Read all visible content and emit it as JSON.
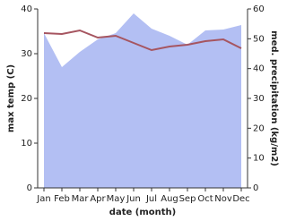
{
  "chart_data": {
    "type": "line",
    "x_label": "date (month)",
    "y_label": "max temp (C)",
    "y2_label": "med. precipitation (kg/m2)",
    "categories": [
      "Jan",
      "Feb",
      "Mar",
      "Apr",
      "May",
      "Jun",
      "Jul",
      "Aug",
      "Sep",
      "Oct",
      "Nov",
      "Dec"
    ],
    "series": [
      {
        "name": "max temp",
        "type": "line",
        "color": "#a65560",
        "values": [
          34.6,
          34.4,
          35.2,
          33.6,
          34.0,
          32.4,
          30.8,
          31.6,
          32.0,
          32.8,
          33.2,
          31.2
        ]
      },
      {
        "name": "med. precipitation",
        "type": "area",
        "axis": "y2",
        "color": "#b3bff3",
        "values": [
          51.9,
          40.5,
          45.6,
          49.8,
          51.9,
          58.5,
          53.4,
          51.0,
          48.0,
          52.8,
          53.1,
          54.6
        ]
      }
    ],
    "ylim": [
      0,
      40
    ],
    "yticks": [
      0,
      10,
      20,
      30,
      40
    ],
    "y2lim": [
      0,
      60
    ],
    "y2ticks": [
      0,
      10,
      20,
      30,
      40,
      50,
      60
    ]
  }
}
